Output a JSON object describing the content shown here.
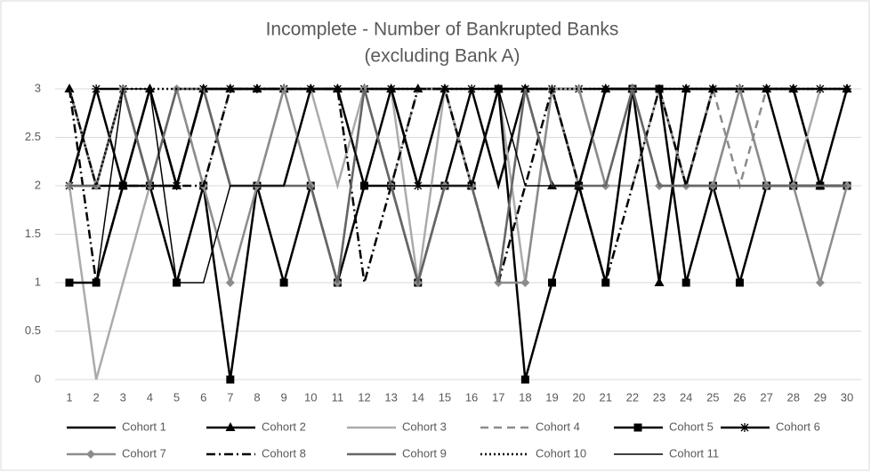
{
  "chart_data": {
    "type": "line",
    "title": "Incomplete - Number of Bankrupted Banks",
    "subtitle": "(excluding Bank A)",
    "categories": [
      "1",
      "2",
      "3",
      "4",
      "5",
      "6",
      "7",
      "8",
      "9",
      "10",
      "11",
      "12",
      "13",
      "14",
      "15",
      "16",
      "17",
      "18",
      "19",
      "20",
      "21",
      "22",
      "23",
      "24",
      "25",
      "26",
      "27",
      "28",
      "29",
      "30"
    ],
    "ylim": [
      0,
      3
    ],
    "yticks": [
      0,
      0.5,
      1,
      1.5,
      2,
      2.5,
      3
    ],
    "grid": true,
    "series": [
      {
        "name": "Cohort 1",
        "color": "#000000",
        "style": "solid",
        "marker": "none",
        "values": [
          2,
          3,
          2,
          3,
          2,
          3,
          2,
          2,
          2,
          3,
          3,
          2,
          3,
          2,
          2,
          3,
          2,
          3,
          3,
          2,
          3,
          3,
          3,
          2,
          3,
          3,
          3,
          2,
          2,
          2
        ]
      },
      {
        "name": "Cohort 2",
        "color": "#000000",
        "style": "solid",
        "marker": "triangle",
        "values": [
          3,
          2,
          2,
          3,
          2,
          3,
          3,
          3,
          3,
          3,
          3,
          3,
          3,
          3,
          3,
          2,
          3,
          3,
          2,
          2,
          3,
          3,
          1,
          3,
          3,
          3,
          3,
          3,
          2,
          3
        ]
      },
      {
        "name": "Cohort 3",
        "color": "#ababab",
        "style": "solid",
        "marker": "none",
        "values": [
          2,
          0,
          1,
          2,
          3,
          3,
          2,
          2,
          3,
          3,
          2,
          3,
          3,
          1,
          3,
          2,
          3,
          1,
          3,
          3,
          2,
          2,
          3,
          2,
          2,
          3,
          2,
          2,
          3,
          3
        ]
      },
      {
        "name": "Cohort 4",
        "color": "#8c8c8c",
        "style": "dashed",
        "marker": "none",
        "values": [
          3,
          2,
          3,
          2,
          3,
          2,
          3,
          3,
          3,
          3,
          3,
          3,
          2,
          3,
          3,
          2,
          1,
          3,
          3,
          2,
          1,
          3,
          3,
          2,
          3,
          2,
          3,
          3,
          3,
          3
        ]
      },
      {
        "name": "Cohort 5",
        "color": "#000000",
        "style": "solid",
        "marker": "square",
        "values": [
          1,
          1,
          2,
          2,
          1,
          2,
          0,
          2,
          1,
          2,
          1,
          2,
          2,
          1,
          2,
          2,
          3,
          0,
          1,
          2,
          1,
          3,
          3,
          1,
          2,
          1,
          2,
          2,
          2,
          2
        ]
      },
      {
        "name": "Cohort 6",
        "color": "#000000",
        "style": "solid",
        "marker": "star",
        "values": [
          2,
          3,
          3,
          2,
          2,
          3,
          3,
          3,
          3,
          3,
          3,
          3,
          3,
          2,
          3,
          3,
          3,
          3,
          3,
          3,
          3,
          3,
          3,
          3,
          3,
          3,
          3,
          3,
          3,
          3
        ]
      },
      {
        "name": "Cohort 7",
        "color": "#8c8c8c",
        "style": "solid",
        "marker": "diamond",
        "values": [
          2,
          2,
          3,
          2,
          3,
          2,
          1,
          2,
          3,
          2,
          1,
          3,
          2,
          1,
          2,
          2,
          1,
          1,
          3,
          3,
          2,
          3,
          2,
          2,
          2,
          3,
          2,
          2,
          1,
          2
        ]
      },
      {
        "name": "Cohort 8",
        "color": "#000000",
        "style": "dashdot",
        "marker": "none",
        "values": [
          3,
          1,
          2,
          2,
          2,
          2,
          3,
          3,
          3,
          3,
          3,
          1,
          2,
          3,
          3,
          2,
          1,
          2,
          3,
          2,
          1,
          2,
          3,
          2,
          3,
          3,
          3,
          3,
          2,
          2
        ]
      },
      {
        "name": "Cohort 9",
        "color": "#666666",
        "style": "solid",
        "marker": "none",
        "values": [
          2,
          2,
          3,
          2,
          3,
          3,
          2,
          2,
          2,
          2,
          1,
          3,
          2,
          1,
          2,
          2,
          1,
          3,
          2,
          2,
          2,
          3,
          2,
          2,
          2,
          2,
          2,
          2,
          2,
          2
        ]
      },
      {
        "name": "Cohort 10",
        "color": "#000000",
        "style": "dotted",
        "marker": "none",
        "values": [
          3,
          2,
          3,
          3,
          3,
          3,
          3,
          3,
          3,
          3,
          3,
          3,
          3,
          3,
          3,
          3,
          3,
          3,
          3,
          3,
          3,
          3,
          3,
          3,
          3,
          3,
          3,
          3,
          3,
          3
        ]
      },
      {
        "name": "Cohort 11",
        "color": "#000000",
        "style": "thin",
        "marker": "none",
        "values": [
          1,
          1,
          3,
          3,
          1,
          1,
          2,
          2,
          2,
          3,
          3,
          2,
          2,
          2,
          2,
          2,
          3,
          2,
          2,
          2,
          3,
          3,
          3,
          3,
          3,
          3,
          3,
          3,
          3,
          3
        ]
      }
    ]
  }
}
